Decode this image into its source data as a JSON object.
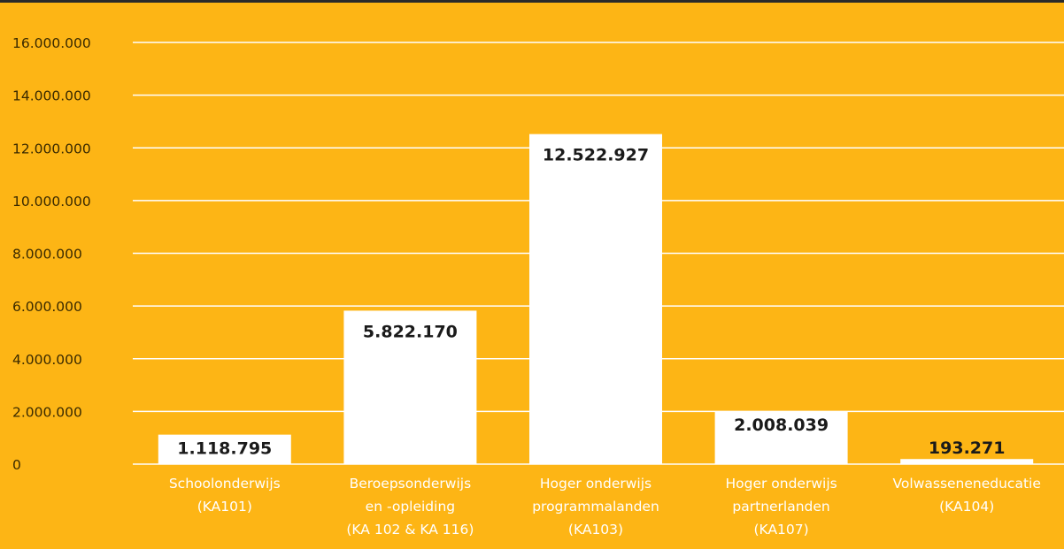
{
  "chart_data": {
    "type": "bar",
    "categories": [
      [
        "Schoolonderwijs",
        "(KA101)"
      ],
      [
        "Beroepsonderwijs",
        "en -opleiding",
        "(KA 102 & KA 116)"
      ],
      [
        "Hoger onderwijs",
        "programmalanden",
        "(KA103)"
      ],
      [
        "Hoger onderwijs",
        "partnerlanden",
        "(KA107)"
      ],
      [
        "Volwasseneneducatie",
        "(KA104)"
      ]
    ],
    "values": [
      1118795,
      5822170,
      12522927,
      2008039,
      193271
    ],
    "value_labels": [
      "1.118.795",
      "5.822.170",
      "12.522.927",
      "2.008.039",
      "193.271"
    ],
    "yticks": [
      0,
      2000000,
      4000000,
      6000000,
      8000000,
      10000000,
      12000000,
      14000000,
      16000000
    ],
    "ytick_labels": [
      "0",
      "2.000.000",
      "4.000.000",
      "6.000.000",
      "8.000.000",
      "10.000.000",
      "12.000.000",
      "14.000.000",
      "16.000.000"
    ],
    "ylim": [
      0,
      16000000
    ],
    "grid": true,
    "colors": {
      "background": "#FDB515",
      "bar": "#FFFFFF",
      "gridline": "#FFFFFF",
      "text": "#1A1A1A",
      "tick_text": "#3A2A00",
      "category_text": "#FFFFFF"
    }
  }
}
